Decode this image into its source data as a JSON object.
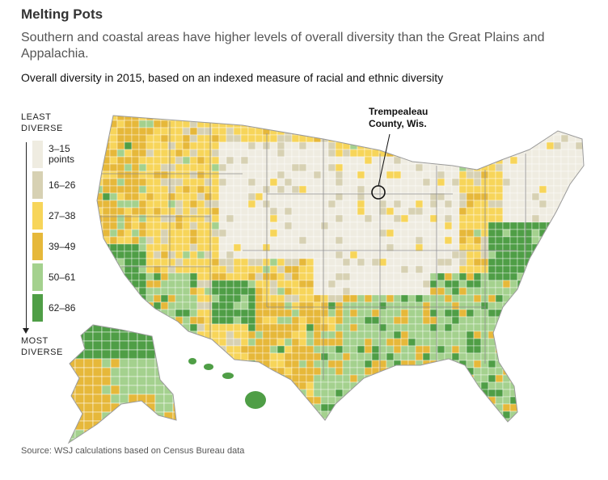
{
  "header": {
    "title": "Melting Pots",
    "subtitle": "Southern and coastal areas have higher levels of overall diversity than the Great Plains and Appalachia.",
    "map_label": "Overall diversity in 2015, based on an indexed measure of racial and ethnic diversity"
  },
  "legend": {
    "top_label_1": "LEAST",
    "top_label_2": "DIVERSE",
    "bottom_label_1": "MOST",
    "bottom_label_2": "DIVERSE",
    "items": [
      {
        "label_1": "3–15",
        "label_2": "points",
        "color": "#efece1"
      },
      {
        "label_1": "16–26",
        "label_2": "",
        "color": "#d7d1b3"
      },
      {
        "label_1": "27–38",
        "label_2": "",
        "color": "#f7d55a"
      },
      {
        "label_1": "39–49",
        "label_2": "",
        "color": "#e6b83a"
      },
      {
        "label_1": "50–61",
        "label_2": "",
        "color": "#a4d18e"
      },
      {
        "label_1": "62–86",
        "label_2": "",
        "color": "#4f9e46"
      }
    ]
  },
  "callout": {
    "line_1": "Trempealeau",
    "line_2": "County, Wis."
  },
  "source": "Source: WSJ calculations based on Census Bureau data",
  "colors": {
    "c1": "#efece1",
    "c2": "#d7d1b3",
    "c3": "#f7d55a",
    "c4": "#e6b83a",
    "c5": "#a4d18e",
    "c6": "#4f9e46",
    "border": "#ffffff",
    "outline": "#9a9a9a"
  }
}
